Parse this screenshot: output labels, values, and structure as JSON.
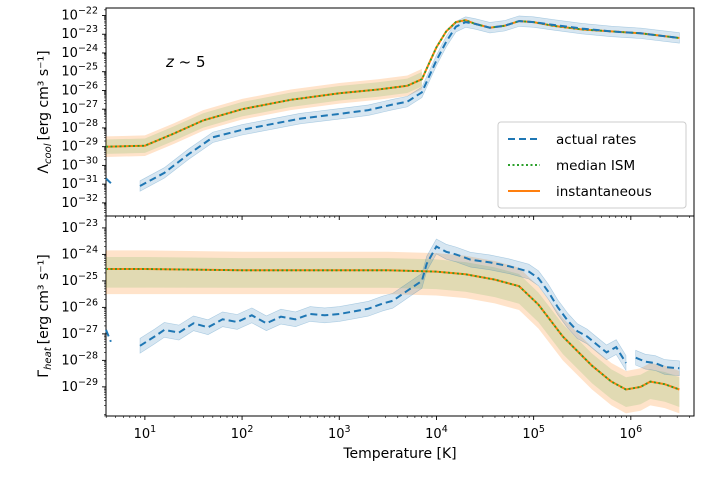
{
  "chart_data": {
    "type": "line",
    "xscale": "log",
    "xlim_exp": [
      0.6,
      6.65
    ],
    "xlabel": "Temperature [K]",
    "x_ticks": [
      {
        "exp": 1,
        "label": "10^1"
      },
      {
        "exp": 2,
        "label": "10^2"
      },
      {
        "exp": 3,
        "label": "10^3"
      },
      {
        "exp": 4,
        "label": "10^4"
      },
      {
        "exp": 5,
        "label": "10^5"
      },
      {
        "exp": 6,
        "label": "10^6"
      }
    ],
    "legend": {
      "position": "lower-right",
      "entries": [
        {
          "key": "actual",
          "label": "actual rates",
          "color": "#1f77b4",
          "dash": "7,4"
        },
        {
          "key": "median",
          "label": "median ISM",
          "color": "#2ca02c",
          "dash": "2,2.5"
        },
        {
          "key": "inst",
          "label": "instantaneous",
          "color": "#ff7f0e",
          "dash": ""
        }
      ]
    },
    "panels": [
      {
        "name": "cooling",
        "ylabel_main": "Λ",
        "ylabel_sub": "cool",
        "ylabel_units": "[erg cm³ s⁻¹]",
        "ylim_exp": [
          -32.7,
          -21.6
        ],
        "annotation": "z ~ 5",
        "y_ticks": [
          -32,
          -31,
          -30,
          -29,
          -28,
          -27,
          -26,
          -25,
          -24,
          -23,
          -22
        ],
        "series": {
          "inst": {
            "logT": [
              0.6,
              1.0,
              1.3,
              1.6,
              2.0,
              2.5,
              3.0,
              3.4,
              3.7,
              3.85,
              3.92,
              4.0,
              4.1,
              4.2,
              4.3,
              4.4,
              4.55,
              4.7,
              4.85,
              5.0,
              5.2,
              5.5,
              5.8,
              6.1,
              6.5
            ],
            "logy": [
              -29.0,
              -28.95,
              -28.3,
              -27.6,
              -27.0,
              -26.5,
              -26.15,
              -25.95,
              -25.75,
              -25.4,
              -24.6,
              -23.7,
              -22.85,
              -22.35,
              -22.25,
              -22.45,
              -22.65,
              -22.55,
              -22.3,
              -22.35,
              -22.55,
              -22.75,
              -22.85,
              -22.95,
              -23.2
            ]
          },
          "band": {
            "logT": [
              0.6,
              1.0,
              1.3,
              1.6,
              2.0,
              2.5,
              3.0,
              3.4,
              3.7,
              3.85
            ],
            "lo": [
              -29.55,
              -29.5,
              -28.85,
              -28.15,
              -27.55,
              -27.05,
              -26.7,
              -26.5,
              -26.3,
              -25.95
            ],
            "hi": [
              -28.45,
              -28.4,
              -27.75,
              -27.05,
              -26.45,
              -25.95,
              -25.6,
              -25.4,
              -25.2,
              -24.85
            ]
          },
          "actual": [
            {
              "logT": [
                0.6,
                0.65
              ],
              "logy": [
                -30.7,
                -30.95
              ]
            },
            {
              "logT": [
                0.95,
                1.2,
                1.45,
                1.7,
                2.0,
                2.3,
                2.6,
                3.0,
                3.3,
                3.55,
                3.7,
                3.85,
                3.92,
                4.0,
                4.1,
                4.2,
                4.3,
                4.4,
                4.55,
                4.7,
                4.85,
                5.0,
                5.2,
                5.5,
                5.8,
                6.1,
                6.5
              ],
              "logy": [
                -31.1,
                -30.4,
                -29.4,
                -28.5,
                -28.1,
                -27.8,
                -27.5,
                -27.25,
                -27.05,
                -26.75,
                -26.6,
                -26.1,
                -25.3,
                -24.4,
                -23.4,
                -22.6,
                -22.35,
                -22.45,
                -22.65,
                -22.55,
                -22.3,
                -22.35,
                -22.5,
                -22.7,
                -22.85,
                -22.95,
                -23.2
              ]
            }
          ]
        }
      },
      {
        "name": "heating",
        "ylabel_main": "Γ",
        "ylabel_sub": "heat",
        "ylabel_units": "[erg cm³ s⁻¹]",
        "ylim_exp": [
          -30.1,
          -22.55
        ],
        "y_ticks": [
          -29,
          -28,
          -27,
          -26,
          -25,
          -24,
          -23
        ],
        "series": {
          "inst": {
            "logT": [
              0.6,
              1.0,
              2.0,
              3.0,
              3.5,
              4.0,
              4.3,
              4.6,
              4.85,
              5.05,
              5.3,
              5.6,
              5.8,
              5.95,
              6.1,
              6.2,
              6.35,
              6.5
            ],
            "logy": [
              -24.55,
              -24.55,
              -24.6,
              -24.6,
              -24.6,
              -24.65,
              -24.75,
              -24.95,
              -25.2,
              -25.9,
              -27.1,
              -28.2,
              -28.8,
              -29.1,
              -29.0,
              -28.8,
              -28.9,
              -29.1
            ]
          },
          "band": {
            "logT": [
              0.6,
              1.0,
              2.0,
              3.0,
              3.5,
              4.0,
              4.3,
              4.6,
              4.85,
              5.05,
              5.3,
              5.6,
              5.8,
              5.95,
              6.1,
              6.2,
              6.35,
              6.5
            ],
            "lo": [
              -25.5,
              -25.5,
              -25.5,
              -25.5,
              -25.5,
              -25.55,
              -25.65,
              -25.85,
              -26.1,
              -26.8,
              -28.0,
              -29.1,
              -29.7,
              -30.0,
              -29.9,
              -29.7,
              -29.8,
              -30.0
            ],
            "hi": [
              -23.85,
              -23.85,
              -23.9,
              -23.9,
              -23.9,
              -23.95,
              -24.05,
              -24.25,
              -24.5,
              -25.2,
              -26.4,
              -27.5,
              -28.1,
              -28.4,
              -28.3,
              -28.1,
              -28.2,
              -28.4
            ]
          },
          "actual": [
            {
              "logT": [
                0.6,
                0.65
              ],
              "logy": [
                -26.85,
                -27.3
              ]
            },
            {
              "logT": [
                0.95,
                1.1,
                1.2,
                1.35,
                1.5,
                1.65,
                1.8,
                1.95,
                2.1,
                2.25,
                2.4,
                2.55,
                2.7,
                2.85,
                3.0,
                3.15,
                3.3,
                3.45,
                3.55,
                3.65,
                3.75,
                3.85,
                3.9,
                4.0,
                4.1,
                4.2,
                4.35,
                4.55,
                4.75,
                4.95,
                5.05,
                5.15,
                5.25,
                5.35,
                5.45,
                5.55,
                5.65,
                5.75,
                5.85,
                5.95
              ],
              "logy": [
                -27.45,
                -27.1,
                -26.85,
                -26.95,
                -26.6,
                -26.75,
                -26.45,
                -26.55,
                -26.3,
                -26.6,
                -26.35,
                -26.45,
                -26.25,
                -26.3,
                -26.25,
                -26.15,
                -26.05,
                -25.85,
                -25.75,
                -25.5,
                -25.25,
                -25.0,
                -24.35,
                -23.7,
                -23.9,
                -24.0,
                -24.2,
                -24.3,
                -24.45,
                -24.65,
                -24.9,
                -25.4,
                -26.0,
                -26.5,
                -26.9,
                -27.1,
                -27.4,
                -27.7,
                -27.5,
                -28.1
              ]
            },
            {
              "logT": [
                6.05,
                6.15,
                6.25,
                6.35,
                6.5
              ],
              "logy": [
                -27.9,
                -28.05,
                -28.1,
                -28.25,
                -28.3
              ]
            }
          ]
        }
      }
    ]
  }
}
